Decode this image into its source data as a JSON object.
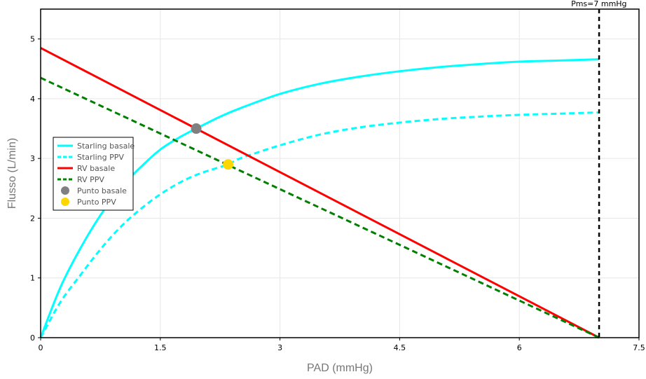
{
  "chart_data": {
    "type": "line",
    "title": "",
    "xlabel": "PAD (mmHg)",
    "ylabel": "Flusso (L/min)",
    "xlim": [
      0,
      7.5
    ],
    "ylim": [
      0,
      5.5
    ],
    "x_ticks": [
      0,
      1.5,
      3,
      4.5,
      6,
      7.5
    ],
    "x_tick_labels": [
      "0",
      "1.5",
      "3",
      "4.5",
      "6",
      "7.5"
    ],
    "y_ticks": [
      0,
      1,
      2,
      3,
      4,
      5
    ],
    "y_tick_labels": [
      "0",
      "1",
      "2",
      "3",
      "4",
      "5"
    ],
    "grid": true,
    "legend_position": "left-middle",
    "series": [
      {
        "name": "Starling basale",
        "style": "solid",
        "color": "#00FFFF",
        "x": [
          0,
          0.25,
          0.5,
          0.75,
          1.0,
          1.25,
          1.5,
          1.75,
          1.95,
          2.25,
          2.5,
          3.0,
          3.5,
          4.0,
          4.5,
          5.0,
          5.5,
          6.0,
          6.5,
          7.0
        ],
        "y": [
          0,
          0.85,
          1.5,
          2.05,
          2.5,
          2.85,
          3.15,
          3.36,
          3.5,
          3.7,
          3.84,
          4.08,
          4.25,
          4.37,
          4.46,
          4.53,
          4.58,
          4.62,
          4.64,
          4.66
        ]
      },
      {
        "name": "Starling PPV",
        "style": "dashed",
        "color": "#00FFFF",
        "x": [
          0,
          0.25,
          0.5,
          0.75,
          1.0,
          1.25,
          1.5,
          1.75,
          2.0,
          2.35,
          2.5,
          3.0,
          3.5,
          4.0,
          4.5,
          5.0,
          5.5,
          6.0,
          6.5,
          7.0
        ],
        "y": [
          0,
          0.6,
          1.05,
          1.48,
          1.85,
          2.15,
          2.4,
          2.6,
          2.75,
          2.9,
          3.0,
          3.22,
          3.4,
          3.52,
          3.6,
          3.66,
          3.7,
          3.73,
          3.75,
          3.77
        ]
      },
      {
        "name": "RV basale",
        "style": "solid",
        "color": "#FF0000",
        "x": [
          0,
          7.0
        ],
        "y": [
          4.85,
          0
        ]
      },
      {
        "name": "RV PPV",
        "style": "dashed",
        "color": "#008000",
        "x": [
          0,
          7.0
        ],
        "y": [
          4.35,
          0
        ]
      }
    ],
    "points": [
      {
        "name": "Punto basale",
        "x": 1.95,
        "y": 3.5,
        "color": "#808080"
      },
      {
        "name": "Punto PPV",
        "x": 2.35,
        "y": 2.9,
        "color": "#FFD700"
      }
    ],
    "vertical_line": {
      "x": 7.0,
      "style": "dashed",
      "color": "#000000"
    },
    "annotation": {
      "text": "Pms=7 mmHg",
      "x": 7.0,
      "y": 5.5
    }
  }
}
